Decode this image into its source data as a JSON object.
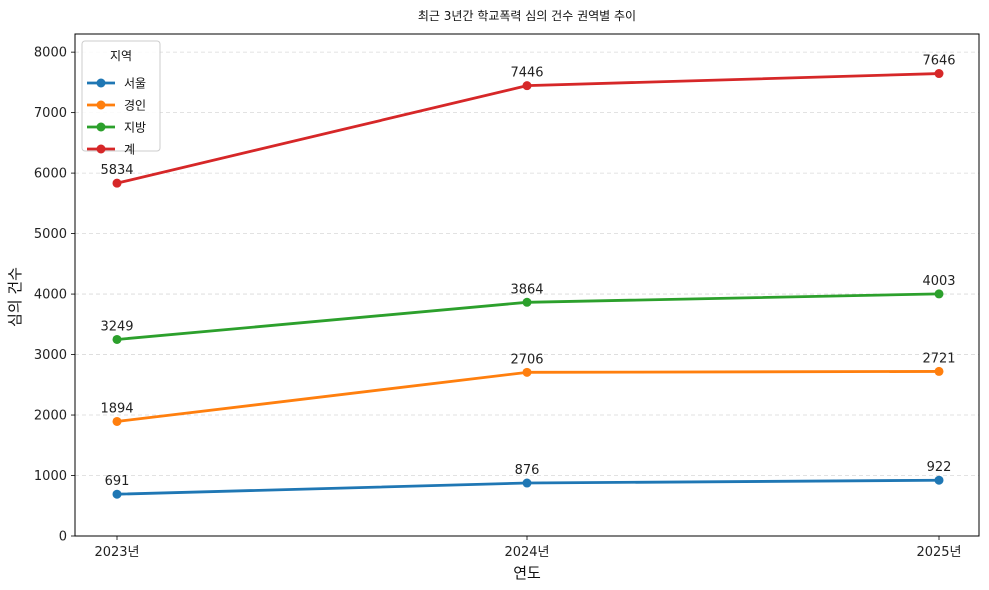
{
  "chart_data": {
    "type": "line",
    "title": "최근 3년간 학교폭력 심의 건수 권역별 추이",
    "xlabel": "연도",
    "ylabel": "심의 건수",
    "categories": [
      "2023년",
      "2024년",
      "2025년"
    ],
    "ylim": [
      0,
      8300
    ],
    "yticks": [
      0,
      1000,
      2000,
      3000,
      4000,
      5000,
      6000,
      7000,
      8000
    ],
    "grid": "horizontal dashed",
    "legend": {
      "title": "지역",
      "placement": "top-left"
    },
    "series": [
      {
        "name": "서울",
        "color": "#1f77b4",
        "values": [
          691,
          876,
          922
        ]
      },
      {
        "name": "경인",
        "color": "#ff7f0e",
        "values": [
          1894,
          2706,
          2721
        ]
      },
      {
        "name": "지방",
        "color": "#2ca02c",
        "values": [
          3249,
          3864,
          4003
        ]
      },
      {
        "name": "계",
        "color": "#d62728",
        "values": [
          5834,
          7446,
          7646
        ]
      }
    ]
  }
}
